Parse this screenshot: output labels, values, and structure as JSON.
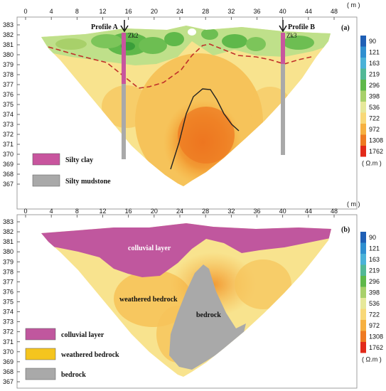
{
  "panel_a": {
    "letter": "(a)",
    "x_ticks": [
      "0",
      "4",
      "8",
      "12",
      "16",
      "20",
      "24",
      "28",
      "32",
      "36",
      "40",
      "44",
      "48"
    ],
    "x_unit": "( m )",
    "y_ticks": [
      "383",
      "382",
      "381",
      "380",
      "379",
      "378",
      "377",
      "376",
      "375",
      "374",
      "373",
      "372",
      "371",
      "370",
      "369",
      "368",
      "367"
    ],
    "profile_a": "Profile A",
    "profile_b": "Profile B",
    "borehole_1": "Zk2",
    "borehole_2": "Zk3",
    "legend": [
      {
        "label": "Silty clay",
        "color": "#c8559e"
      },
      {
        "label": "Silty mudstone",
        "color": "#a9a9a9"
      }
    ]
  },
  "panel_b": {
    "letter": "(b)",
    "x_ticks": [
      "0",
      "4",
      "8",
      "12",
      "16",
      "20",
      "24",
      "28",
      "32",
      "36",
      "40",
      "44",
      "48"
    ],
    "x_unit": "( m )",
    "y_ticks": [
      "383",
      "382",
      "381",
      "380",
      "379",
      "378",
      "377",
      "376",
      "375",
      "374",
      "373",
      "372",
      "371",
      "370",
      "369",
      "368",
      "367"
    ],
    "colluvial_label": "colluvial layer",
    "weathered_label": "weathered bedrock",
    "bedrock_label": "bedrock",
    "legend": [
      {
        "label": "colluvial layer",
        "color": "#c0579e"
      },
      {
        "label": "weathered bedrock",
        "color": "#f5c51e"
      },
      {
        "label": "bedrock",
        "color": "#a9a9a9"
      }
    ]
  },
  "colorbar": {
    "values": [
      "90",
      "121",
      "163",
      "219",
      "296",
      "398",
      "536",
      "722",
      "972",
      "1308",
      "1762"
    ],
    "colors": [
      "#1f5fb5",
      "#2f8fd0",
      "#4ab2d8",
      "#52b896",
      "#5fb84a",
      "#a8d06a",
      "#e6e89a",
      "#f8d878",
      "#f6b040",
      "#ee7a22",
      "#e22a1a"
    ],
    "unit": "( Ω.m )"
  }
}
